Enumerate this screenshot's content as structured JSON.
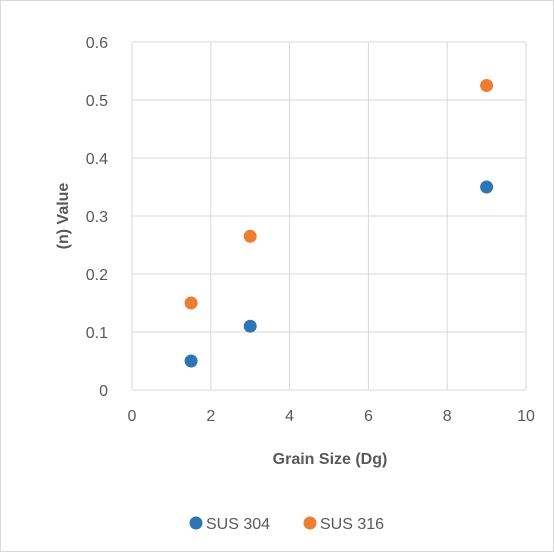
{
  "chart_data": {
    "type": "scatter",
    "title": "",
    "xlabel": "Grain Size (Dg)",
    "ylabel": "(n) Value",
    "xlim": [
      0,
      10
    ],
    "ylim": [
      0,
      0.6
    ],
    "xticks": [
      0,
      2,
      4,
      6,
      8,
      10
    ],
    "yticks": [
      0,
      0.1,
      0.2,
      0.3,
      0.4,
      0.5,
      0.6
    ],
    "xtick_labels": [
      "0",
      "2",
      "4",
      "6",
      "8",
      "10"
    ],
    "ytick_labels": [
      "0",
      "0.1",
      "0.2",
      "0.3",
      "0.4",
      "0.5",
      "0.6"
    ],
    "grid": true,
    "legend_position": "bottom",
    "series": [
      {
        "name": "SUS 304",
        "color": "#2e75b6",
        "x": [
          1.5,
          3,
          9
        ],
        "y": [
          0.05,
          0.11,
          0.35
        ]
      },
      {
        "name": "SUS 316",
        "color": "#ed7d31",
        "x": [
          1.5,
          3,
          9
        ],
        "y": [
          0.15,
          0.265,
          0.525
        ]
      }
    ]
  }
}
